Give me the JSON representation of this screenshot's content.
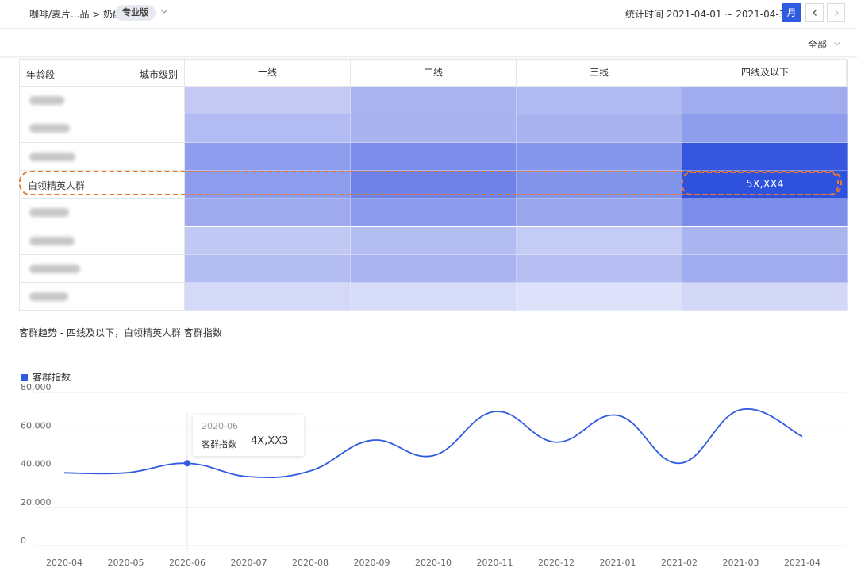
{
  "header": {
    "breadcrumb": "咖啡/麦片...品 > 奶酪",
    "badge": "专业版",
    "stat_time": "统计时间 2021-04-01 ~ 2021-04-30",
    "month_button": "月",
    "prev_icon": "chevron-left-icon",
    "next_icon": "chevron-right-icon"
  },
  "filter": {
    "label": "全部"
  },
  "heatmap": {
    "corner_row_label": "年龄段",
    "corner_col_label": "城市级别",
    "columns": [
      "一线",
      "二线",
      "三线",
      "四线及以下"
    ],
    "rows": [
      {
        "label": "",
        "blurred": true,
        "cells": [
          "#c3c9f3",
          "#a9b4f0",
          "#b0baf1",
          "#a0acee"
        ]
      },
      {
        "label": "",
        "blurred": true,
        "cells": [
          "#b3bcf2",
          "#a9b3f0",
          "#a8b2ef",
          "#8e9dec"
        ]
      },
      {
        "label": "",
        "blurred": true,
        "cells": [
          "#8e9ded",
          "#7d8eea",
          "#8596eb",
          "#3756e0"
        ]
      },
      {
        "label": "白领精英人群",
        "blurred": false,
        "cells": [
          "#8d9cec",
          "#6e82e8",
          "#8395eb",
          "#2f52de"
        ],
        "highlight_value": "5X,XX4"
      },
      {
        "label": "",
        "blurred": true,
        "cells": [
          "#9ea9ee",
          "#8d9bec",
          "#9aa7ee",
          "#7d8dea"
        ]
      },
      {
        "label": "",
        "blurred": true,
        "cells": [
          "#c1c8f4",
          "#b3bdf2",
          "#c4cbf4",
          "#aab5f0"
        ]
      },
      {
        "label": "",
        "blurred": true,
        "cells": [
          "#b4bdf2",
          "#a9b4f0",
          "#b6bef2",
          "#a0acef"
        ]
      },
      {
        "label": "",
        "blurred": true,
        "cells": [
          "#d4d9f8",
          "#d6dbf8",
          "#dde1f9",
          "#d3d8f7"
        ]
      }
    ]
  },
  "chart_title": "客群趋势 - 四线及以下，白领精英人群 客群指数",
  "tooltip": {
    "date": "2020-06",
    "name": "客群指数",
    "value": "4X,XX3"
  },
  "chart_data": {
    "type": "line",
    "x": [
      "2020-04",
      "2020-05",
      "2020-06",
      "2020-07",
      "2020-08",
      "2020-09",
      "2020-10",
      "2020-11",
      "2020-12",
      "2021-01",
      "2021-02",
      "2021-03",
      "2021-04"
    ],
    "series": [
      {
        "name": "客群指数",
        "color": "#2f5be0",
        "values": [
          38000,
          38000,
          43000,
          36000,
          39000,
          55000,
          47000,
          70000,
          54000,
          68000,
          43000,
          71000,
          57000
        ]
      }
    ],
    "y_ticks": [
      "0",
      "20,000",
      "40,000",
      "60,000",
      "80,000"
    ],
    "ylim": [
      0,
      80000
    ],
    "highlight_index": 2,
    "legend_position": "top-left",
    "grid": true
  }
}
